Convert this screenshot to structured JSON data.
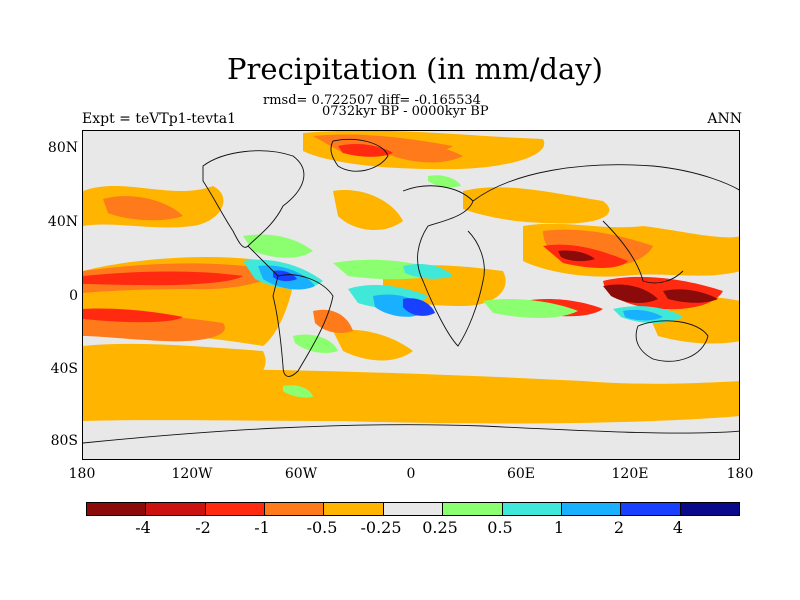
{
  "title": "Precipitation (in mm/day)",
  "stats": "rmsd= 0.722507 diff= -0.165534",
  "period": "0732kyr BP - 0000kyr BP",
  "expt_label": "Expt = teVTp1-tevta1",
  "season": "ANN",
  "map_data": {
    "type": "global anomaly map",
    "variable": "precipitation difference",
    "units": "mm/day",
    "lat_ticks": [
      "80N",
      "40N",
      "0",
      "40S",
      "80S"
    ],
    "lon_ticks": [
      "180",
      "120W",
      "60W",
      "0",
      "60E",
      "120E",
      "180"
    ],
    "colorbar": {
      "labels": [
        "-4",
        "-2",
        "-1",
        "-0.5",
        "-0.25",
        "0.25",
        "0.5",
        "1",
        "2",
        "4"
      ],
      "colors": [
        "#8b0a0a",
        "#cc1111",
        "#ff2a10",
        "#ff7a1a",
        "#ffb400",
        "#e8e8e8",
        "#8cff70",
        "#3fe8d8",
        "#18b0ff",
        "#1a40ff",
        "#0a0a8a"
      ]
    }
  }
}
